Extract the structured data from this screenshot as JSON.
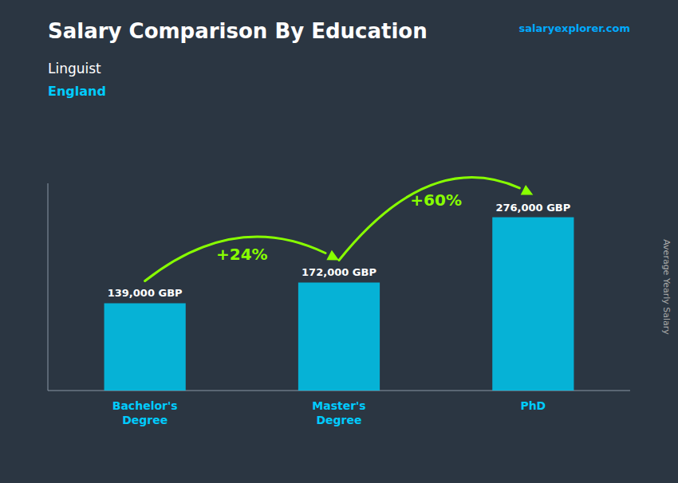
{
  "chart_data": {
    "type": "bar",
    "title": "Salary Comparison By Education",
    "subtitle": [
      "Linguist",
      "England"
    ],
    "y_label": "Average Yearly Salary",
    "categories": [
      "Bachelor's\nDegree",
      "Master's\nDegree",
      "PhD"
    ],
    "values": [
      139000,
      172000,
      276000
    ],
    "value_labels": [
      "139,000 GBP",
      "172,000 GBP",
      "276,000 GBP"
    ],
    "data_labels": true,
    "color": "#00c8f0",
    "ylim": [
      0,
      330000
    ],
    "tick_labels": "x",
    "grid": false,
    "annotations": [
      "+24%",
      "+60%"
    ],
    "source": "salaryexplorer.com"
  }
}
